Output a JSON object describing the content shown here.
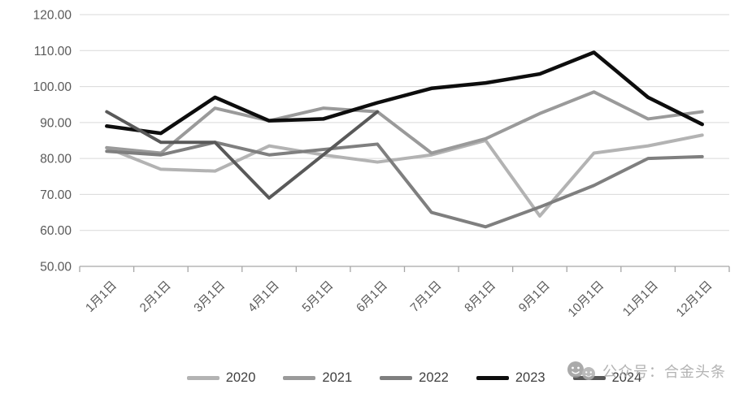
{
  "watermark": {
    "text": "公众号：合金头条"
  },
  "chart_data": {
    "type": "line",
    "title": "",
    "xlabel": "",
    "ylabel": "",
    "categories": [
      "1月1日",
      "2月1日",
      "3月1日",
      "4月1日",
      "5月1日",
      "6月1日",
      "7月1日",
      "8月1日",
      "9月1日",
      "10月1日",
      "11月1日",
      "12月1日"
    ],
    "series": [
      {
        "name": "2020",
        "color": "#b3b3b3",
        "values": [
          83,
          77,
          76.5,
          83.5,
          81,
          79,
          81,
          85,
          64,
          81.5,
          83.5,
          86.5
        ]
      },
      {
        "name": "2021",
        "color": "#9a9a9a",
        "values": [
          83,
          81.5,
          94,
          90.5,
          94,
          93,
          81.5,
          85.5,
          92.5,
          98.5,
          91,
          93
        ]
      },
      {
        "name": "2022",
        "color": "#7f7f7f",
        "values": [
          82,
          81,
          84.5,
          81,
          82.5,
          84,
          65,
          61,
          66.5,
          72.5,
          80,
          80.5
        ]
      },
      {
        "name": "2023",
        "color": "#0d0d0d",
        "values": [
          89,
          87,
          97,
          90.5,
          91,
          95.5,
          99.5,
          101,
          103.5,
          109.5,
          97,
          89.5
        ]
      },
      {
        "name": "2024",
        "color": "#595959",
        "values": [
          93,
          84.5,
          84.5,
          69,
          81,
          93,
          null,
          null,
          null,
          null,
          null,
          null
        ]
      }
    ],
    "ylim": [
      50,
      120
    ],
    "ytick_step": 10,
    "ytick_labels": [
      "120.00",
      "110.00",
      "100.00",
      "90.00",
      "80.00",
      "70.00",
      "60.00",
      "50.00"
    ],
    "grid": true,
    "legend_position": "bottom",
    "axis_color": "#a6a6a6",
    "grid_color": "#d9d9d9"
  }
}
